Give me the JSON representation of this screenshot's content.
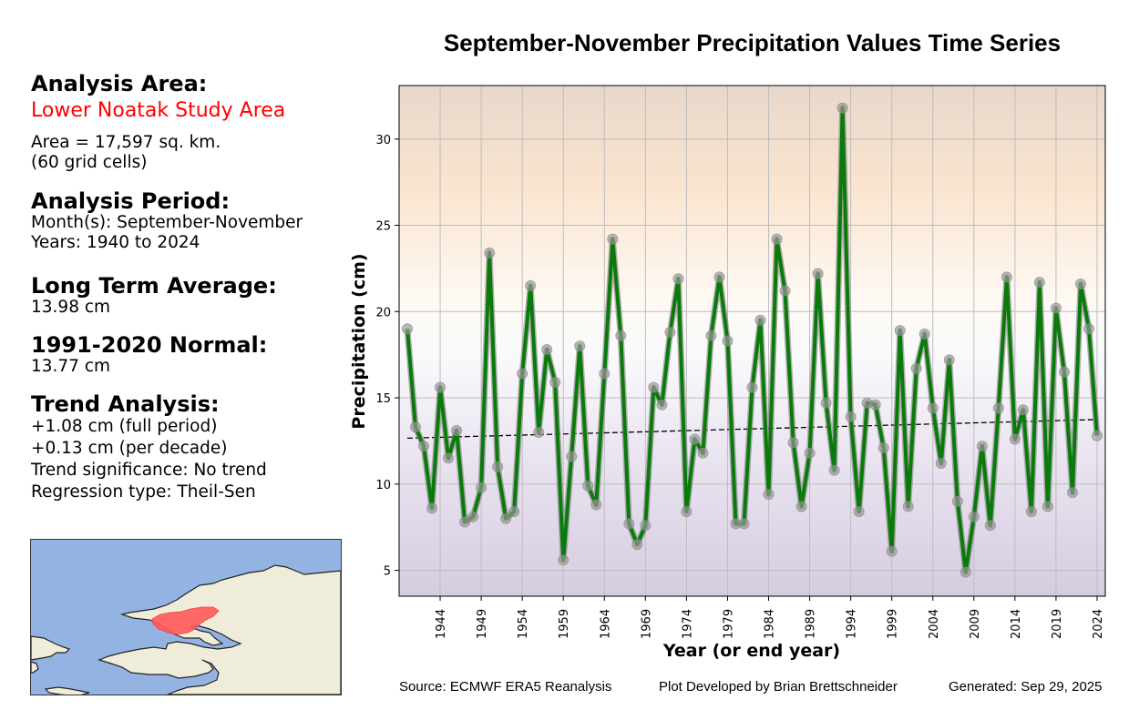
{
  "sidebar": {
    "analysis_area_heading": "Analysis Area:",
    "area_name": "Lower Noatak Study Area",
    "area_size": "Area = 17,597 sq. km.",
    "grid_cells": "(60 grid cells)",
    "analysis_period_heading": "Analysis Period:",
    "months": "Month(s): September-November",
    "years": "Years: 1940 to 2024",
    "long_term_average_heading": "Long Term Average:",
    "long_term_average_value": "13.98 cm",
    "normal_heading": "1991-2020 Normal:",
    "normal_value": "13.77 cm",
    "trend_heading": "Trend Analysis:",
    "trend_full_period": "+1.08 cm (full period)",
    "trend_per_decade": "+0.13 cm (per decade)",
    "trend_significance": "Trend significance: No trend",
    "regression_type": "Regression type: Theil-Sen"
  },
  "map": {
    "ocean_color": "#93b4e2",
    "land_color": "#efedda",
    "study_area_color": "#ff5a5a"
  },
  "footer": {
    "source": "Source: ECMWF ERA5 Reanalysis",
    "developer": "Plot Developed by Brian Brettschneider",
    "generated": "Generated: Sep 29, 2025"
  },
  "chart_data": {
    "type": "line",
    "title": "September-November Precipitation Values Time Series",
    "xlabel": "Year (or end year)",
    "ylabel": "Precipitation (cm)",
    "xlim": [
      1939,
      2025
    ],
    "ylim": [
      3.5,
      33.1
    ],
    "grid": true,
    "line_color": "#0a7a0a",
    "marker_color": "#999999",
    "trend_color": "#000000",
    "xticks": [
      1944,
      1949,
      1954,
      1959,
      1964,
      1969,
      1974,
      1979,
      1984,
      1989,
      1994,
      1999,
      2004,
      2009,
      2014,
      2019,
      2024
    ],
    "yticks": [
      5,
      10,
      15,
      20,
      25,
      30
    ],
    "x": [
      1940,
      1941,
      1942,
      1943,
      1944,
      1945,
      1946,
      1947,
      1948,
      1949,
      1950,
      1951,
      1952,
      1953,
      1954,
      1955,
      1956,
      1957,
      1958,
      1959,
      1960,
      1961,
      1962,
      1963,
      1964,
      1965,
      1966,
      1967,
      1968,
      1969,
      1970,
      1971,
      1972,
      1973,
      1974,
      1975,
      1976,
      1977,
      1978,
      1979,
      1980,
      1981,
      1982,
      1983,
      1984,
      1985,
      1986,
      1987,
      1988,
      1989,
      1990,
      1991,
      1992,
      1993,
      1994,
      1995,
      1996,
      1997,
      1998,
      1999,
      2000,
      2001,
      2002,
      2003,
      2004,
      2005,
      2006,
      2007,
      2008,
      2009,
      2010,
      2011,
      2012,
      2013,
      2014,
      2015,
      2016,
      2017,
      2018,
      2019,
      2020,
      2021,
      2022,
      2023,
      2024
    ],
    "series": [
      {
        "name": "Precipitation",
        "values": [
          19.0,
          13.3,
          12.2,
          8.6,
          15.6,
          11.5,
          13.1,
          7.8,
          8.1,
          9.8,
          23.4,
          11.0,
          8.0,
          8.4,
          16.4,
          21.5,
          13.0,
          17.8,
          15.9,
          5.6,
          11.6,
          18.0,
          9.9,
          8.8,
          16.4,
          24.2,
          18.6,
          7.7,
          6.5,
          7.6,
          15.6,
          14.6,
          18.8,
          21.9,
          8.4,
          12.6,
          11.8,
          18.6,
          22.0,
          18.3,
          7.7,
          7.7,
          15.6,
          19.5,
          9.4,
          24.2,
          21.2,
          12.4,
          8.7,
          11.8,
          22.2,
          14.7,
          10.8,
          31.8,
          13.9,
          8.4,
          14.7,
          14.6,
          12.1,
          6.1,
          18.9,
          8.7,
          16.7,
          18.7,
          14.4,
          11.2,
          17.2,
          9.0,
          4.9,
          8.1,
          12.2,
          7.6,
          14.4,
          22.0,
          12.6,
          14.3,
          8.4,
          21.7,
          8.7,
          20.2,
          16.5,
          9.5,
          21.6,
          19.0,
          12.8
        ]
      }
    ],
    "trend_line": {
      "x": [
        1940,
        2024
      ],
      "y": [
        12.66,
        13.74
      ]
    }
  }
}
